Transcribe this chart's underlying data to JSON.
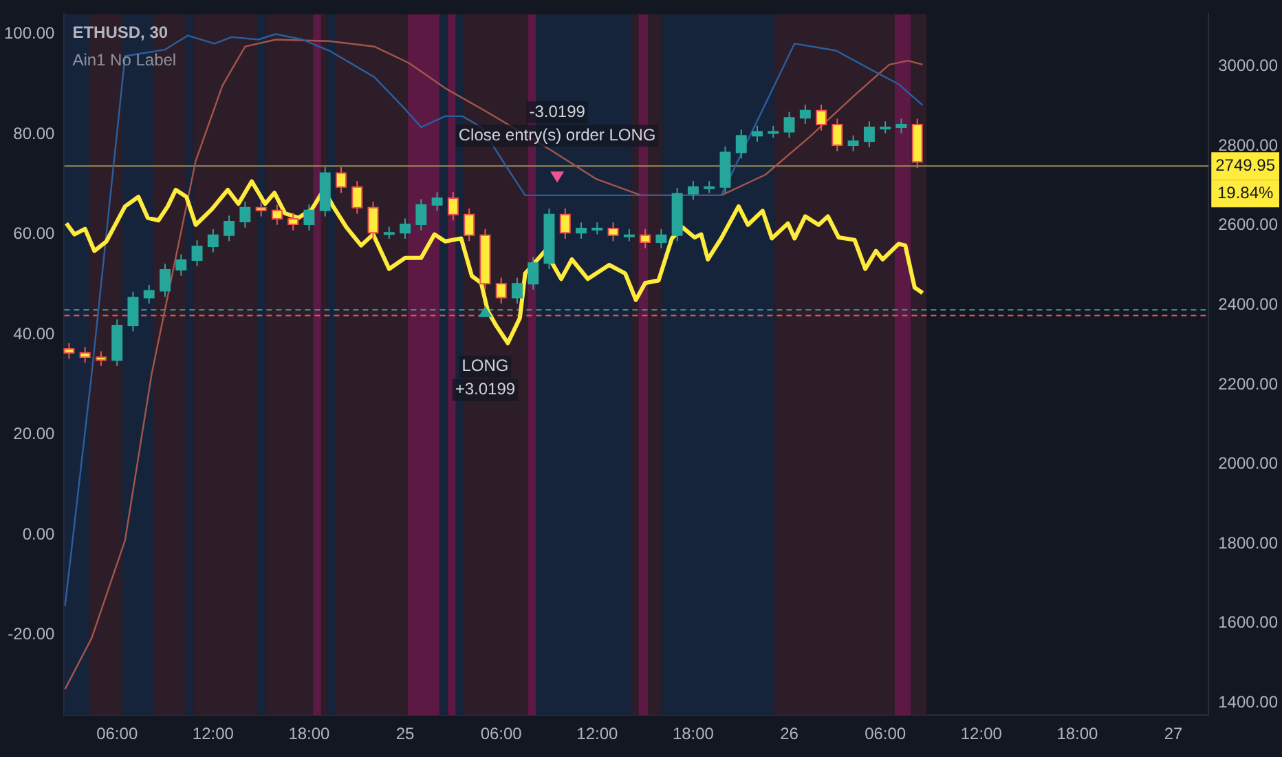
{
  "chart_data": {
    "type": "candlestick",
    "title": "ETHUSD, 30",
    "subtitle": "Ain1 No Label",
    "series": [
      {
        "type": "line",
        "color": "#ffeb3b",
        "x": [
          "--05-24T02:50",
          "--05-24T03:20",
          "--05-24T04:00",
          "--05-24T04:35",
          "--05-24T05:20",
          "--05-24T06:30",
          "--05-24T07:20",
          "--05-24T07:55",
          "--05-24T08:35",
          "--05-24T09:10",
          "--05-24T09:40",
          "--05-24T10:20",
          "--05-24T10:55",
          "--05-24T11:55",
          "--05-24T12:55",
          "--05-24T13:35",
          "--05-24T14:25",
          "--05-24T15:15",
          "--05-24T15:50",
          "--05-24T16:30",
          "--05-24T17:20",
          "--05-24T18:10",
          "--05-24T18:55",
          "--05-24T19:30",
          "--05-24T20:20",
          "--05-24T21:15",
          "--05-24T22:00",
          "--05-24T23:00",
          "--05-25T00:00",
          "--05-25T01:00",
          "--05-25T01:50",
          "--05-25T02:30",
          "--05-25T03:30",
          "--05-25T04:10",
          "--05-25T04:45",
          "--05-25T05:10",
          "--05-25T05:40",
          "--05-25T06:25",
          "--05-25T07:10",
          "--05-25T07:30",
          "--05-25T08:45",
          "--05-25T09:45",
          "--05-25T10:25",
          "--05-25T11:25",
          "--05-25T12:45",
          "--05-25T13:45",
          "--05-25T14:25",
          "--05-25T15:00",
          "--05-25T15:50",
          "--05-25T16:40",
          "--05-25T17:20",
          "--05-25T18:05",
          "--05-25T18:30",
          "--05-25T18:55",
          "--05-25T19:45",
          "--05-25T20:50",
          "--05-25T21:25",
          "--05-25T22:20",
          "--05-25T22:55",
          "--05-25T23:55",
          "--05-26T00:20",
          "--05-26T01:00",
          "--05-26T01:50",
          "--05-26T02:25",
          "--05-26T03:05",
          "--05-26T04:05",
          "--05-26T04:45",
          "--05-26T05:25",
          "--05-26T05:50",
          "--05-26T06:50",
          "--05-26T07:15",
          "--05-26T07:50",
          "--05-26T08:20"
        ],
        "values": [
          62.2,
          60,
          61.1,
          56.7,
          58.6,
          65.6,
          67.5,
          63.3,
          62.8,
          65.6,
          68.9,
          67.5,
          61.9,
          65,
          68.9,
          66.1,
          70.6,
          66.1,
          68.3,
          64.2,
          63.3,
          65,
          68.9,
          65.6,
          61.4,
          57.8,
          60,
          53.1,
          55.3,
          55.3,
          60,
          58.6,
          59.2,
          51.7,
          50.3,
          44.7,
          41.9,
          38.3,
          43.3,
          52.2,
          56.7,
          51.1,
          55,
          51.1,
          53.9,
          52.2,
          46.9,
          50.3,
          50.8,
          59.2,
          61.4,
          59.4,
          60,
          55,
          59.2,
          65.6,
          61.9,
          64.7,
          59.2,
          62.2,
          59.2,
          63.6,
          61.9,
          63.6,
          59.4,
          58.9,
          53.1,
          56.7,
          55,
          58.1,
          57.8,
          49.4,
          48.3
        ]
      },
      {
        "type": "line",
        "color": "#2a5f9e",
        "x": [
          "--05-24T02:45",
          "--05-24T04:25",
          "--05-24T06:30",
          "--05-24T09:00",
          "--05-24T10:25",
          "--05-24T12:05",
          "--05-24T13:10",
          "--05-24T14:50",
          "--05-24T15:55",
          "--05-24T17:35",
          "--05-24T19:15",
          "--05-24T22:05",
          "--05-25T00:00",
          "--05-25T01:00",
          "--05-25T02:30",
          "--05-25T03:35",
          "--05-25T04:45",
          "--05-25T06:25",
          "--05-25T07:30",
          "--05-25T19:45",
          "--05-26T00:20",
          "--05-26T02:55",
          "--05-26T05:10",
          "--05-26T06:50",
          "--05-26T08:20"
        ],
        "values": [
          -14.2,
          32.2,
          95.6,
          96.9,
          99.7,
          98.1,
          99.4,
          98.9,
          100,
          98.9,
          96.7,
          91.4,
          85,
          81.4,
          83.6,
          83.6,
          81.4,
          73.1,
          67.8,
          67.8,
          98.1,
          96.7,
          92.8,
          90,
          85.8
        ]
      },
      {
        "type": "line",
        "color": "#a4554a",
        "x": [
          "--05-24T02:45",
          "--05-24T04:25",
          "--05-24T06:30",
          "--05-24T08:10",
          "--05-24T10:55",
          "--05-24T12:35",
          "--05-24T14:00",
          "--05-24T15:55",
          "--05-24T19:15",
          "--05-24T22:05",
          "--05-25T00:15",
          "--05-25T02:30",
          "--05-25T05:15",
          "--05-25T09:10",
          "--05-25T11:55",
          "--05-25T14:45",
          "--05-25T19:45",
          "--05-25T22:30",
          "--05-26T01:15",
          "--05-26T04:05",
          "--05-26T06:15",
          "--05-26T07:25",
          "--05-26T08:20"
        ],
        "values": [
          -30.8,
          -20.6,
          -1.1,
          32.2,
          74.7,
          89.7,
          97.5,
          98.9,
          98.6,
          97.5,
          94.2,
          89.2,
          84.2,
          76.7,
          71.1,
          67.8,
          67.8,
          71.9,
          79.4,
          87.8,
          93.9,
          94.7,
          93.9
        ]
      },
      {
        "type": "candlestick",
        "axis": "y2",
        "x": [
          "--05-24T03:00",
          "--05-24T04:00",
          "--05-24T05:00",
          "--05-24T06:00",
          "--05-24T07:00",
          "--05-24T08:00",
          "--05-24T09:00",
          "--05-24T10:00",
          "--05-24T11:00",
          "--05-24T12:00",
          "--05-24T13:00",
          "--05-24T14:00",
          "--05-24T15:00",
          "--05-24T16:00",
          "--05-24T17:00",
          "--05-24T18:00",
          "--05-24T19:00",
          "--05-24T20:00",
          "--05-24T21:00",
          "--05-24T22:00",
          "--05-24T23:00",
          "--05-25T00:00",
          "--05-25T01:00",
          "--05-25T02:00",
          "--05-25T03:00",
          "--05-25T04:00",
          "--05-25T05:00",
          "--05-25T06:00",
          "--05-25T07:00",
          "--05-25T08:00",
          "--05-25T09:00",
          "--05-25T10:00",
          "--05-25T11:00",
          "--05-25T12:00",
          "--05-25T13:00",
          "--05-25T14:00",
          "--05-25T15:00",
          "--05-25T16:00",
          "--05-25T17:00",
          "--05-25T18:00",
          "--05-25T19:00",
          "--05-25T20:00",
          "--05-25T21:00",
          "--05-25T22:00",
          "--05-25T23:00",
          "--05-26T00:00",
          "--05-26T01:00",
          "--05-26T02:00",
          "--05-26T03:00",
          "--05-26T04:00",
          "--05-26T05:00",
          "--05-26T06:00",
          "--05-26T07:00",
          "--05-26T08:00"
        ],
        "ohlc": [
          [
            2290,
            2305,
            2265,
            2280
          ],
          [
            2280,
            2295,
            2255,
            2269
          ],
          [
            2269,
            2284,
            2247,
            2262
          ],
          [
            2262,
            2364,
            2247,
            2349
          ],
          [
            2349,
            2434,
            2334,
            2419
          ],
          [
            2419,
            2451,
            2404,
            2436
          ],
          [
            2436,
            2504,
            2421,
            2489
          ],
          [
            2489,
            2528,
            2474,
            2513
          ],
          [
            2513,
            2563,
            2498,
            2548
          ],
          [
            2548,
            2591,
            2533,
            2576
          ],
          [
            2576,
            2625,
            2561,
            2610
          ],
          [
            2610,
            2660,
            2595,
            2645
          ],
          [
            2645,
            2660,
            2623,
            2638
          ],
          [
            2638,
            2653,
            2602,
            2617
          ],
          [
            2617,
            2632,
            2588,
            2603
          ],
          [
            2603,
            2653,
            2588,
            2638
          ],
          [
            2638,
            2747,
            2623,
            2732
          ],
          [
            2732,
            2747,
            2682,
            2697
          ],
          [
            2697,
            2712,
            2630,
            2645
          ],
          [
            2645,
            2660,
            2567,
            2582
          ],
          [
            2582,
            2597,
            2567,
            2582
          ],
          [
            2582,
            2618,
            2567,
            2603
          ],
          [
            2603,
            2667,
            2588,
            2652
          ],
          [
            2652,
            2684,
            2637,
            2669
          ],
          [
            2669,
            2684,
            2613,
            2628
          ],
          [
            2628,
            2643,
            2561,
            2576
          ],
          [
            2576,
            2591,
            2439,
            2454
          ],
          [
            2454,
            2469,
            2404,
            2419
          ],
          [
            2419,
            2469,
            2404,
            2454
          ],
          [
            2454,
            2521,
            2439,
            2506
          ],
          [
            2506,
            2643,
            2491,
            2628
          ],
          [
            2628,
            2643,
            2567,
            2582
          ],
          [
            2582,
            2608,
            2567,
            2593
          ],
          [
            2593,
            2608,
            2578,
            2593
          ],
          [
            2593,
            2608,
            2561,
            2576
          ],
          [
            2576,
            2591,
            2561,
            2576
          ],
          [
            2576,
            2591,
            2543,
            2558
          ],
          [
            2558,
            2591,
            2543,
            2576
          ],
          [
            2576,
            2695,
            2561,
            2680
          ],
          [
            2680,
            2712,
            2665,
            2697
          ],
          [
            2697,
            2712,
            2682,
            2697
          ],
          [
            2697,
            2799,
            2682,
            2784
          ],
          [
            2784,
            2841,
            2769,
            2826
          ],
          [
            2826,
            2851,
            2811,
            2836
          ],
          [
            2836,
            2851,
            2821,
            2836
          ],
          [
            2836,
            2886,
            2821,
            2871
          ],
          [
            2871,
            2904,
            2856,
            2889
          ],
          [
            2889,
            2904,
            2839,
            2854
          ],
          [
            2854,
            2869,
            2787,
            2802
          ],
          [
            2802,
            2827,
            2787,
            2812
          ],
          [
            2812,
            2862,
            2797,
            2847
          ],
          [
            2847,
            2862,
            2832,
            2847
          ],
          [
            2847,
            2869,
            2832,
            2854
          ],
          [
            2854,
            2869,
            2745,
            2760
          ]
        ]
      },
      {
        "type": "scatter",
        "axis": "y2",
        "colors": [
          "#26a69a",
          "#ef5390"
        ],
        "x": [
          "--05-25T05:00",
          "--05-25T09:30"
        ],
        "values": [
          2384,
          2722
        ]
      }
    ],
    "xlim": [
      "--05-24T02:42",
      "--05-27T02:12"
    ],
    "xticks": [
      {
        "value": "--05-24T06:00",
        "label": "06:00"
      },
      {
        "value": "--05-24T12:00",
        "label": "12:00"
      },
      {
        "value": "--05-24T18:00",
        "label": "18:00"
      },
      {
        "value": "--05-25",
        "label": "25"
      },
      {
        "value": "--05-25T06:00",
        "label": "06:00"
      },
      {
        "value": "--05-25T12:00",
        "label": "12:00"
      },
      {
        "value": "--05-25T18:00",
        "label": "18:00"
      },
      {
        "value": "--05-26",
        "label": "26"
      },
      {
        "value": "--05-26T06:00",
        "label": "06:00"
      },
      {
        "value": "--05-26T12:00",
        "label": "12:00"
      },
      {
        "value": "--05-26T18:00",
        "label": "18:00"
      },
      {
        "value": "--05-27",
        "label": "27"
      }
    ],
    "ylim": [
      -36,
      104
    ],
    "yticks": [
      {
        "value": -20,
        "label": "-20.00"
      },
      {
        "value": 0,
        "label": "0.00"
      },
      {
        "value": 20,
        "label": "20.00"
      },
      {
        "value": 40,
        "label": "40.00"
      },
      {
        "value": 60,
        "label": "60.00"
      },
      {
        "value": 80,
        "label": "80.00"
      },
      {
        "value": 100,
        "label": "100.00"
      }
    ],
    "y2lim": [
      1369,
      3132
    ],
    "y2ticks": [
      {
        "value": 1400,
        "label": "1400.00"
      },
      {
        "value": 1600,
        "label": "1600.00"
      },
      {
        "value": 1800,
        "label": "1800.00"
      },
      {
        "value": 2000,
        "label": "2000.00"
      },
      {
        "value": 2200,
        "label": "2200.00"
      },
      {
        "value": 2400,
        "label": "2400.00"
      },
      {
        "value": 2600,
        "label": "2600.00"
      },
      {
        "value": 2800,
        "label": "2800.00"
      },
      {
        "value": 3000,
        "label": "3000.00"
      }
    ],
    "ref_lines": [
      {
        "axis": "y2",
        "value": 2749.95,
        "label": "2749.95",
        "color": "#9a8a5a"
      },
      {
        "axis": "y2",
        "value": 2388,
        "color": "#3fa39a",
        "line_style": "dashed"
      },
      {
        "axis": "y2",
        "value": 2374,
        "color": "#e0535f",
        "line_style": "dashed"
      }
    ],
    "bands": [
      {
        "axis": "x",
        "from": "--05-24T02:42",
        "to": "--05-24T04:15",
        "color": "#16243b"
      },
      {
        "axis": "x",
        "from": "--05-24T04:15",
        "to": "--05-24T06:20",
        "color": "#2d1d29"
      },
      {
        "axis": "x",
        "from": "--05-24T06:20",
        "to": "--05-24T08:15",
        "color": "#16243b"
      },
      {
        "axis": "x",
        "from": "--05-24T08:15",
        "to": "--05-24T10:15",
        "color": "#2d1d29"
      },
      {
        "axis": "x",
        "from": "--05-24T10:15",
        "to": "--05-24T10:45",
        "color": "#16243b"
      },
      {
        "axis": "x",
        "from": "--05-24T10:45",
        "to": "--05-24T14:45",
        "color": "#2d1d29"
      },
      {
        "axis": "x",
        "from": "--05-24T14:45",
        "to": "--05-24T15:15",
        "color": "#16243b"
      },
      {
        "axis": "x",
        "from": "--05-24T15:15",
        "to": "--05-24T18:15",
        "color": "#2d1d29"
      },
      {
        "axis": "x",
        "from": "--05-24T18:15",
        "to": "--05-24T18:45",
        "color": "#5b1944"
      },
      {
        "axis": "x",
        "from": "--05-24T18:45",
        "to": "--05-24T19:10",
        "color": "#2d1d29"
      },
      {
        "axis": "x",
        "from": "--05-24T19:10",
        "to": "--05-24T19:40",
        "color": "#16243b"
      },
      {
        "axis": "x",
        "from": "--05-24T19:40",
        "to": "--05-25T00:10",
        "color": "#2d1d29"
      },
      {
        "axis": "x",
        "from": "--05-25T00:10",
        "to": "--05-25T02:10",
        "color": "#5b1944"
      },
      {
        "axis": "x",
        "from": "--05-25T02:10",
        "to": "--05-25T02:40",
        "color": "#16243b"
      },
      {
        "axis": "x",
        "from": "--05-25T02:40",
        "to": "--05-25T03:10",
        "color": "#5b1944"
      },
      {
        "axis": "x",
        "from": "--05-25T03:10",
        "to": "--05-25T03:40",
        "color": "#16243b"
      },
      {
        "axis": "x",
        "from": "--05-25T03:40",
        "to": "--05-25T07:40",
        "color": "#2d1d29"
      },
      {
        "axis": "x",
        "from": "--05-25T07:40",
        "to": "--05-25T08:10",
        "color": "#5b1944"
      },
      {
        "axis": "x",
        "from": "--05-25T08:10",
        "to": "--05-25T14:10",
        "color": "#16243b"
      },
      {
        "axis": "x",
        "from": "--05-25T14:10",
        "to": "--05-25T14:35",
        "color": "#2d1d29"
      },
      {
        "axis": "x",
        "from": "--05-25T14:35",
        "to": "--05-25T15:10",
        "color": "#5b1944"
      },
      {
        "axis": "x",
        "from": "--05-25T15:10",
        "to": "--05-25T16:05",
        "color": "#2d1d29"
      },
      {
        "axis": "x",
        "from": "--05-25T16:05",
        "to": "--05-25T23:05",
        "color": "#16243b"
      },
      {
        "axis": "x",
        "from": "--05-25T23:05",
        "to": "--05-26T06:35",
        "color": "#2d1d29"
      },
      {
        "axis": "x",
        "from": "--05-26T06:35",
        "to": "--05-26T07:35",
        "color": "#5b1944"
      },
      {
        "axis": "x",
        "from": "--05-26T07:35",
        "to": "--05-26T08:35",
        "color": "#2d1d29"
      }
    ],
    "annotations": [
      "LONG",
      "+3.0199",
      "-3.0199",
      "Close entry(s) order LONG",
      "19.84%"
    ]
  }
}
